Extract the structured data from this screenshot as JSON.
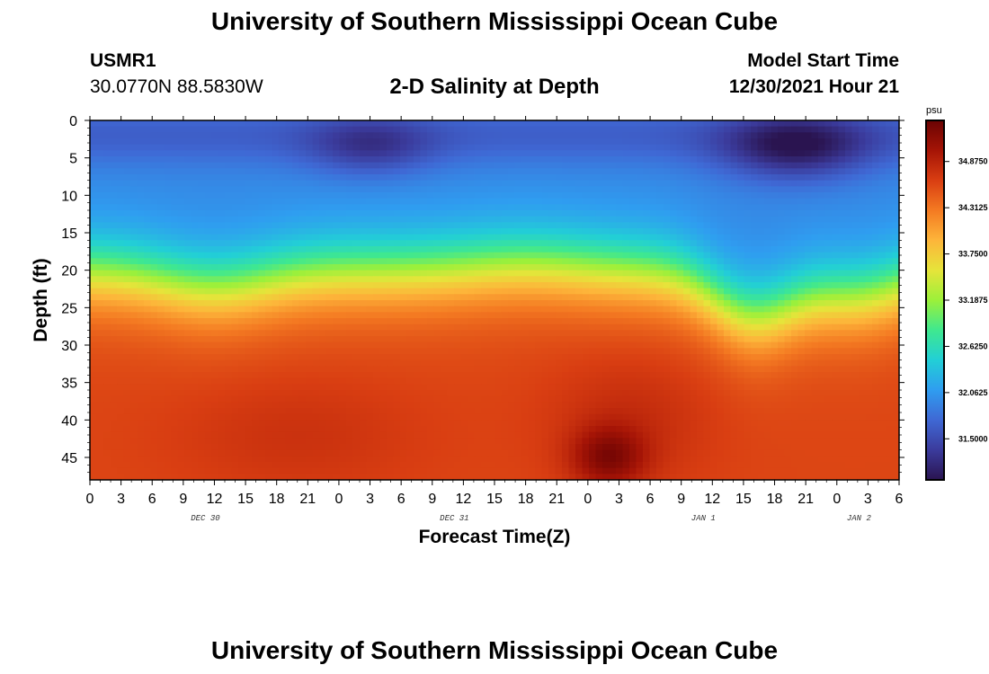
{
  "header": {
    "title": "University of Southern Mississippi Ocean Cube",
    "station_id": "USMR1",
    "coords": "30.0770N  88.5830W",
    "chart_title": "2-D Salinity at Depth",
    "model_start_label": "Model Start Time",
    "model_start_value": "12/30/2021 Hour 21"
  },
  "footer": {
    "title": "University of Southern Mississippi Ocean Cube"
  },
  "chart_data": {
    "type": "heatmap",
    "title": "2-D Salinity at Depth",
    "xlabel": "Forecast Time(Z)",
    "ylabel": "Depth (ft)",
    "x_unit": "hours (Z)",
    "xlim_hours_from_dec30_00z": [
      0,
      78
    ],
    "ylim": [
      48,
      0
    ],
    "x_tick_labels": [
      "0",
      "3",
      "6",
      "9",
      "12",
      "15",
      "18",
      "21",
      "0",
      "3",
      "6",
      "9",
      "12",
      "15",
      "18",
      "21",
      "0",
      "3",
      "6",
      "9",
      "12",
      "15",
      "18",
      "21",
      "0",
      "3",
      "6"
    ],
    "day_labels": [
      {
        "label": "DEC 30",
        "at_hour": 12
      },
      {
        "label": "DEC 31",
        "at_hour": 36
      },
      {
        "label": "JAN 1",
        "at_hour": 60
      },
      {
        "label": "JAN 2",
        "at_hour": 75
      }
    ],
    "y_ticks": [
      0,
      5,
      10,
      15,
      20,
      25,
      30,
      35,
      40,
      45
    ],
    "colorbar": {
      "unit": "psu",
      "range": [
        31.0,
        35.375
      ],
      "tick_labels": [
        "34.8750",
        "34.3125",
        "33.7500",
        "33.1875",
        "32.6250",
        "32.0625",
        "31.5000"
      ],
      "tick_values": [
        34.875,
        34.3125,
        33.75,
        33.1875,
        32.625,
        32.0625,
        31.5
      ],
      "colors": [
        "#2a1450",
        "#3b3b9c",
        "#3f68d4",
        "#2f9df0",
        "#22cfd6",
        "#3fe88f",
        "#9cf03a",
        "#e6e43a",
        "#fdb53a",
        "#f47a22",
        "#d93e12",
        "#a51406",
        "#6a0303"
      ]
    },
    "field": {
      "description": "Low salinity (~31.5-32.2 psu) in the upper ~12 ft, with a halocline around 15-25 ft that dips deeper near hour 60-66 (Jan 1); high salinity (~34.5-35 psu) below ~28 ft, with a maximum near 45 ft at hour ~50.",
      "surface_psu": 32.0,
      "bottom_psu": 34.7
    },
    "grid": false
  }
}
